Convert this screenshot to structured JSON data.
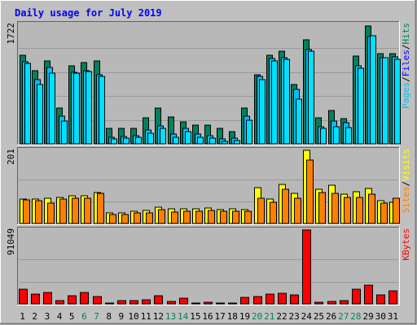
{
  "title": "Daily usage for July 2019",
  "colors": {
    "background": "#c0c0c0",
    "plot_bg": "#b8b8b8",
    "title": "#0000ff",
    "hits": "#00805c",
    "files": "#00c0ff",
    "pages": "#00e0ff",
    "visits": "#ffff00",
    "sites": "#ff8000",
    "kbytes": "#ff0000",
    "weekend_label": "#00805c"
  },
  "legend": {
    "top": [
      {
        "text": "Hits",
        "color": "#00805c"
      },
      {
        "text": "Files",
        "color": "#0000ff"
      },
      {
        "text": "Pages",
        "color": "#00c0ff"
      }
    ],
    "middle": [
      {
        "text": "Visits",
        "color": "#ffff00"
      },
      {
        "text": "Sites",
        "color": "#ff8000"
      }
    ],
    "bottom": [
      {
        "text": "KBytes",
        "color": "#ff0000"
      }
    ]
  },
  "chart_data": [
    {
      "type": "bar",
      "name": "hits-files-pages",
      "max_label": "1722",
      "ylim": [
        0,
        1722
      ],
      "grid": true,
      "categories": [
        "1",
        "2",
        "3",
        "4",
        "5",
        "6",
        "7",
        "8",
        "9",
        "10",
        "11",
        "12",
        "13",
        "14",
        "15",
        "16",
        "17",
        "18",
        "19",
        "20",
        "21",
        "22",
        "23",
        "24",
        "25",
        "26",
        "27",
        "28",
        "29",
        "30",
        "31"
      ],
      "weekend_days": [
        "6",
        "7",
        "13",
        "14",
        "20",
        "21",
        "27",
        "28"
      ],
      "series": [
        {
          "name": "Hits",
          "values": [
            1280,
            1060,
            1200,
            520,
            1120,
            1170,
            1190,
            220,
            220,
            220,
            370,
            520,
            390,
            320,
            270,
            270,
            220,
            170,
            520,
            990,
            1280,
            1340,
            860,
            1500,
            380,
            480,
            360,
            1270,
            1700,
            1300,
            1300
          ]
        },
        {
          "name": "Files",
          "values": [
            1180,
            930,
            1100,
            400,
            1030,
            1050,
            990,
            90,
            110,
            120,
            200,
            260,
            140,
            220,
            140,
            120,
            70,
            80,
            400,
            970,
            1230,
            1240,
            780,
            1360,
            250,
            330,
            310,
            1120,
            1550,
            1240,
            1250
          ]
        },
        {
          "name": "Pages",
          "values": [
            1160,
            860,
            1020,
            330,
            1020,
            1040,
            970,
            70,
            80,
            90,
            150,
            220,
            90,
            180,
            90,
            80,
            40,
            50,
            340,
            920,
            1200,
            1220,
            640,
            1340,
            220,
            250,
            230,
            1090,
            1560,
            1240,
            1220
          ]
        }
      ]
    },
    {
      "type": "bar",
      "name": "visits-sites",
      "max_label": "201",
      "ylim": [
        0,
        201
      ],
      "grid": true,
      "categories": [
        "1",
        "2",
        "3",
        "4",
        "5",
        "6",
        "7",
        "8",
        "9",
        "10",
        "11",
        "12",
        "13",
        "14",
        "15",
        "16",
        "17",
        "18",
        "19",
        "20",
        "21",
        "22",
        "23",
        "24",
        "25",
        "26",
        "27",
        "28",
        "29",
        "30",
        "31"
      ],
      "series": [
        {
          "name": "Visits",
          "values": [
            68,
            68,
            70,
            72,
            75,
            75,
            84,
            28,
            30,
            34,
            36,
            44,
            40,
            40,
            40,
            42,
            38,
            40,
            38,
            98,
            66,
            108,
            82,
            201,
            94,
            106,
            80,
            88,
            96,
            62,
            58
          ]
        },
        {
          "name": "Sites",
          "values": [
            64,
            62,
            56,
            68,
            70,
            70,
            82,
            24,
            24,
            28,
            28,
            38,
            32,
            34,
            34,
            36,
            34,
            34,
            34,
            70,
            58,
            94,
            70,
            174,
            84,
            82,
            72,
            72,
            80,
            56,
            70
          ]
        }
      ]
    },
    {
      "type": "bar",
      "name": "kbytes",
      "max_label": "91049",
      "ylim": [
        0,
        91049
      ],
      "grid": true,
      "categories": [
        "1",
        "2",
        "3",
        "4",
        "5",
        "6",
        "7",
        "8",
        "9",
        "10",
        "11",
        "12",
        "13",
        "14",
        "15",
        "16",
        "17",
        "18",
        "19",
        "20",
        "21",
        "22",
        "23",
        "24",
        "25",
        "26",
        "27",
        "28",
        "29",
        "30",
        "31"
      ],
      "series": [
        {
          "name": "KBytes",
          "values": [
            18000,
            12000,
            14500,
            4500,
            10000,
            14500,
            9000,
            1500,
            4000,
            4000,
            5500,
            10500,
            3000,
            7000,
            1500,
            2000,
            1500,
            1500,
            8500,
            9500,
            12000,
            13500,
            11000,
            91049,
            2500,
            3500,
            4000,
            18500,
            23500,
            11500,
            16500
          ]
        }
      ]
    }
  ]
}
